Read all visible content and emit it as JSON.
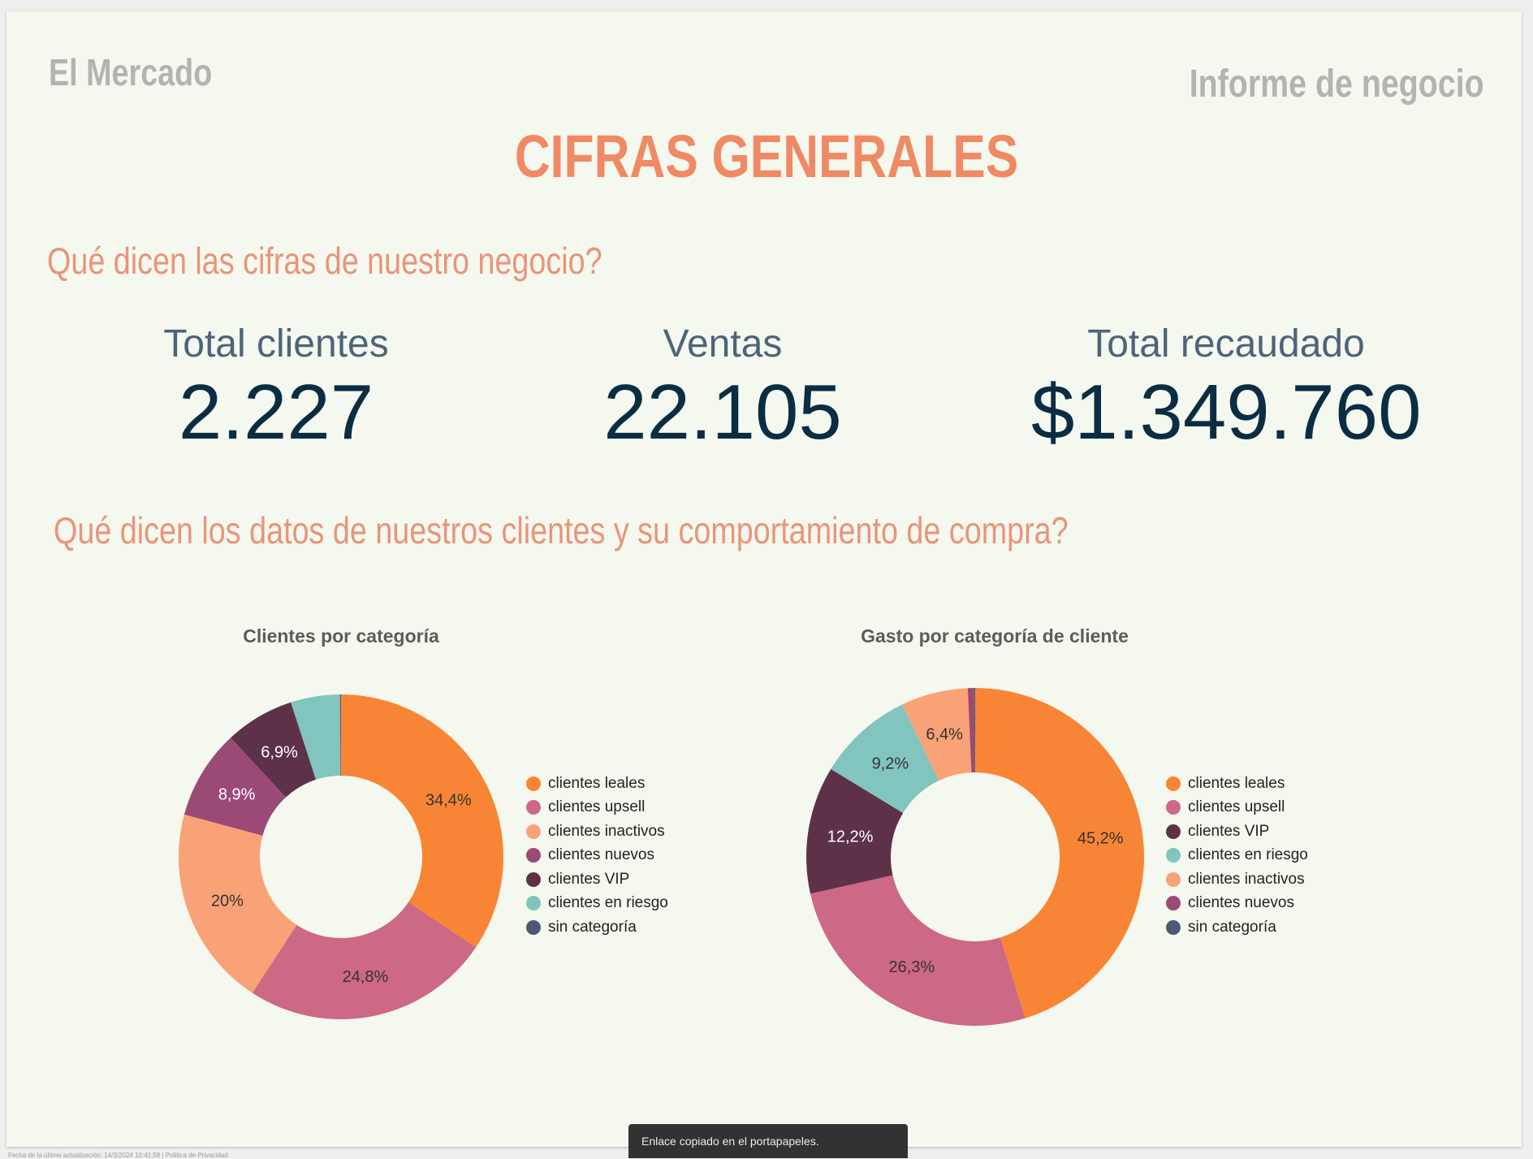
{
  "header": {
    "brand": "El Mercado",
    "report_title": "Informe de negocio",
    "main_title": "CIFRAS GENERALES"
  },
  "questions": {
    "figures": "Qué dicen las cifras de nuestro negocio?",
    "customers": "Qué dicen los datos de nuestros clientes y su comportamiento de compra?"
  },
  "kpis": [
    {
      "label": "Total clientes",
      "value": "2.227"
    },
    {
      "label": "Ventas",
      "value": "22.105"
    },
    {
      "label": "Total recaudado",
      "value": "$1.349.760"
    }
  ],
  "colors": {
    "clientes leales": "#f88535",
    "clientes upsell": "#cd6885",
    "clientes inactivos": "#f9a277",
    "clientes nuevos": "#9b4a75",
    "clientes VIP": "#5d3249",
    "clientes en riesgo": "#82c4be",
    "sin categoría": "#4b5a72"
  },
  "chart_data": [
    {
      "type": "pie",
      "title": "Clientes por categoría",
      "categories": [
        "clientes leales",
        "clientes upsell",
        "clientes inactivos",
        "clientes nuevos",
        "clientes VIP",
        "clientes en riesgo",
        "sin categoría"
      ],
      "values": [
        34.4,
        24.8,
        20.0,
        8.9,
        6.9,
        4.9,
        0.1
      ],
      "labels": [
        "34,4%",
        "24,8%",
        "20%",
        "8,9%",
        "6,9%",
        "",
        ""
      ],
      "legend_position": "right"
    },
    {
      "type": "pie",
      "title": "Gasto por categoría de cliente",
      "categories": [
        "clientes leales",
        "clientes upsell",
        "clientes VIP",
        "clientes en riesgo",
        "clientes inactivos",
        "clientes nuevos",
        "sin categoría"
      ],
      "values": [
        45.2,
        26.3,
        12.2,
        9.2,
        6.4,
        0.6,
        0.1
      ],
      "labels": [
        "45,2%",
        "26,3%",
        "12,2%",
        "9,2%",
        "6,4%",
        "",
        ""
      ],
      "legend_position": "right"
    }
  ],
  "footer": {
    "text": "Fecha de la última actualización: 14/3/2024 10:41:58 | Política de Privacidad"
  },
  "toast": {
    "message": "Enlace copiado en el portapapeles."
  }
}
